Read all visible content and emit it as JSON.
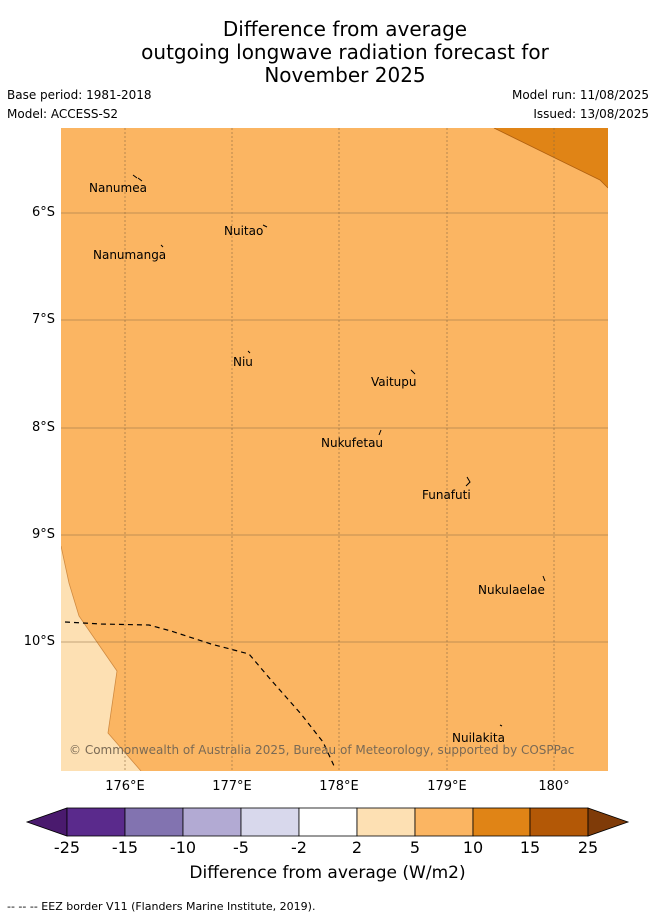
{
  "title": {
    "line1": "Difference from average",
    "line2": "outgoing longwave radiation forecast for",
    "line3": "November 2025"
  },
  "meta": {
    "base_period": "Base period: 1981-2018",
    "model": "Model: ACCESS-S2",
    "model_run": "Model run: 11/08/2025",
    "issued": "Issued: 13/08/2025"
  },
  "map": {
    "lat_labels": [
      "6°S",
      "7°S",
      "8°S",
      "9°S",
      "10°S"
    ],
    "lon_labels": [
      "176°E",
      "177°E",
      "178°E",
      "179°E",
      "180°"
    ],
    "places": [
      {
        "name": "Nanumea"
      },
      {
        "name": "Nuitao"
      },
      {
        "name": "Nanumanga"
      },
      {
        "name": "Niu"
      },
      {
        "name": "Vaitupu"
      },
      {
        "name": "Nukufetau"
      },
      {
        "name": "Funafuti"
      },
      {
        "name": "Nukulaelae"
      },
      {
        "name": "Nuilakita"
      }
    ],
    "copyright": "© Commonwealth of Australia 2025, Bureau of Meteorology, supported by COSPPac",
    "colors": {
      "band_2_5": "#fde0b3",
      "band_5_10": "#fbb562",
      "band_10_15": "#e08416"
    }
  },
  "colorbar": {
    "title": "Difference from average (W/m2)",
    "ticks": [
      "-25",
      "-15",
      "-10",
      "-5",
      "-2",
      "2",
      "5",
      "10",
      "15",
      "25"
    ],
    "colors": [
      "#4a1a6e",
      "#5a2a8c",
      "#8273b0",
      "#b2aad3",
      "#d8d8ec",
      "#ffffff",
      "#fde0b3",
      "#fbb562",
      "#e08416",
      "#b35806",
      "#7f3b08"
    ]
  },
  "legend": {
    "text": "-- -- -- EEZ border V11 (Flanders Marine Institute, 2019)."
  }
}
